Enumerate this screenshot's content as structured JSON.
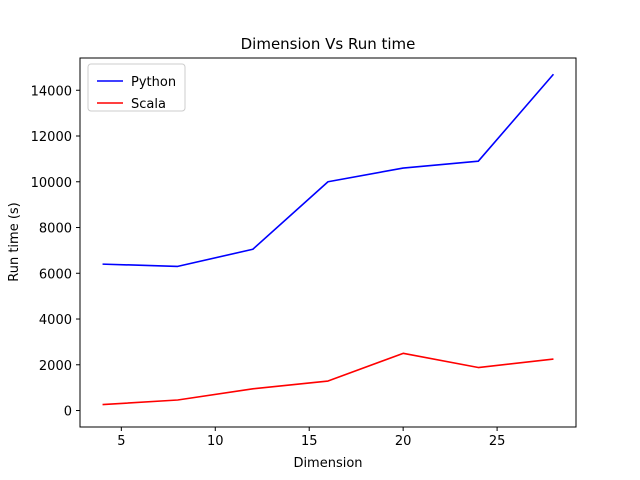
{
  "chart_data": {
    "type": "line",
    "title": "Dimension Vs Run time",
    "xlabel": "Dimension",
    "ylabel": "Run time (s)",
    "xlim": [
      2.8,
      29.2
    ],
    "ylim": [
      -720,
      15410
    ],
    "xticks": [
      5,
      10,
      15,
      20,
      25
    ],
    "yticks": [
      0,
      2000,
      4000,
      6000,
      8000,
      10000,
      12000,
      14000
    ],
    "grid": false,
    "legend_position": "top-left",
    "x": [
      4,
      8,
      12,
      16,
      20,
      24,
      28
    ],
    "series": [
      {
        "name": "Python",
        "color": "#0000ff",
        "values": [
          6400,
          6300,
          7050,
          10000,
          10600,
          10900,
          14700
        ]
      },
      {
        "name": "Scala",
        "color": "#ff0000",
        "values": [
          260,
          460,
          950,
          1290,
          2500,
          1880,
          2250
        ]
      }
    ]
  }
}
